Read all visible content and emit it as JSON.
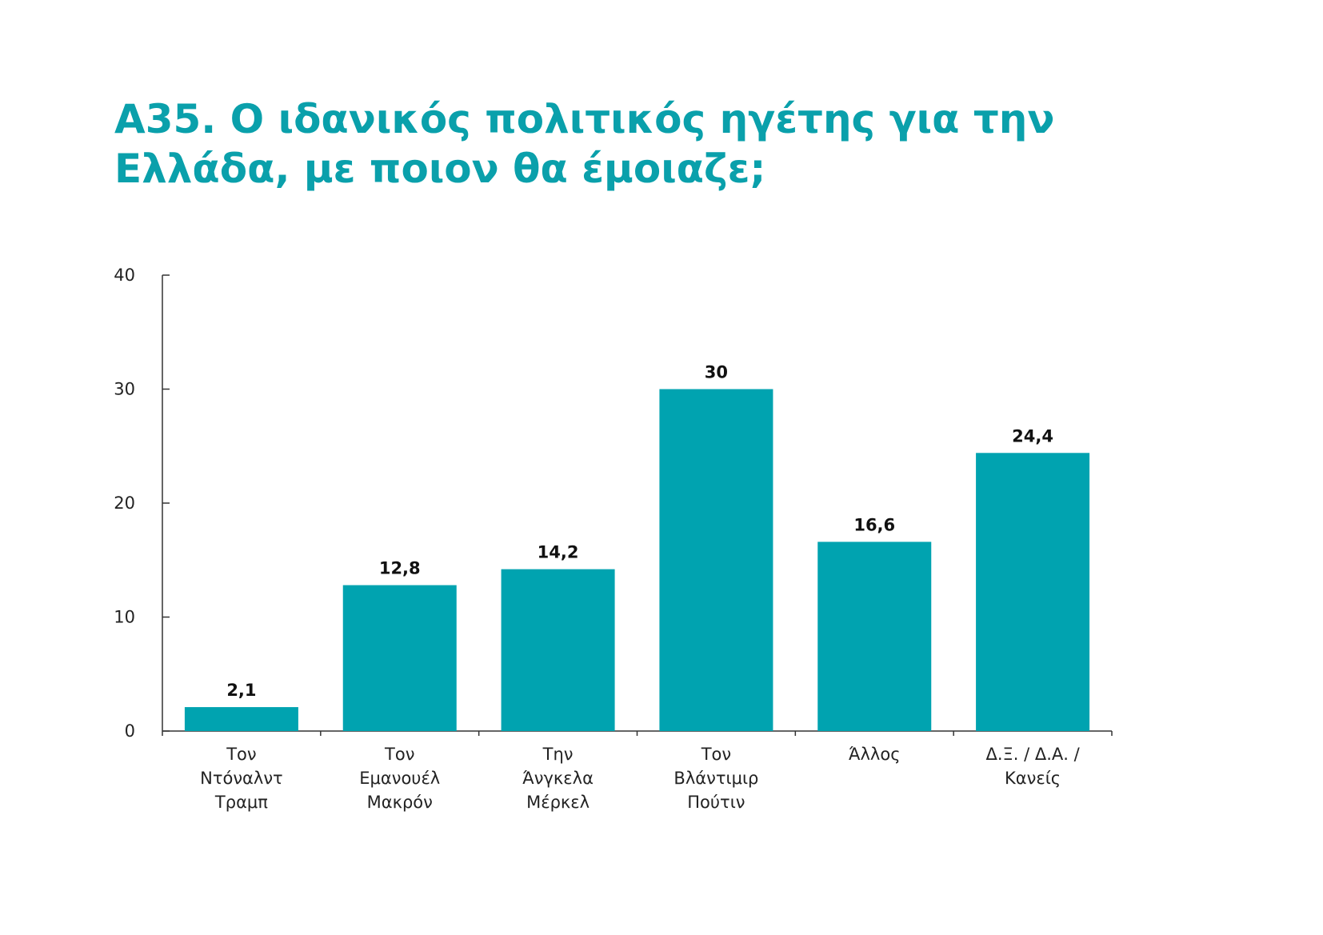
{
  "title_lines": [
    "A35. Ο ιδανικός πολιτικός ηγέτης για την",
    "Ελλάδα, με ποιον θα έμοιαζε;"
  ],
  "colors": {
    "accent": "#0aa0ab",
    "bar": "#00a3b0",
    "axis": "#333333"
  },
  "chart_data": {
    "type": "bar",
    "title": "A35. Ο ιδανικός πολιτικός ηγέτης για την Ελλάδα, με ποιον θα έμοιαζε;",
    "categories": [
      [
        "Τον",
        "Ντόναλντ",
        "Τραμπ"
      ],
      [
        "Τον",
        "Εμανουέλ",
        "Μακρόν"
      ],
      [
        "Την",
        "Άνγκελα",
        "Μέρκελ"
      ],
      [
        "Τον",
        "Βλάντιμιρ",
        "Πούτιν"
      ],
      [
        "Άλλος"
      ],
      [
        "Δ.Ξ. / Δ.Α. /",
        "Κανείς"
      ]
    ],
    "values": [
      2.1,
      12.8,
      14.2,
      30,
      16.6,
      24.4
    ],
    "value_labels": [
      "2,1",
      "12,8",
      "14,2",
      "30",
      "16,6",
      "24,4"
    ],
    "ylim": [
      0,
      40
    ],
    "yticks": [
      "0",
      "10",
      "20",
      "30",
      "40"
    ],
    "xlabel": "",
    "ylabel": "",
    "grid": false,
    "legend": "none"
  }
}
